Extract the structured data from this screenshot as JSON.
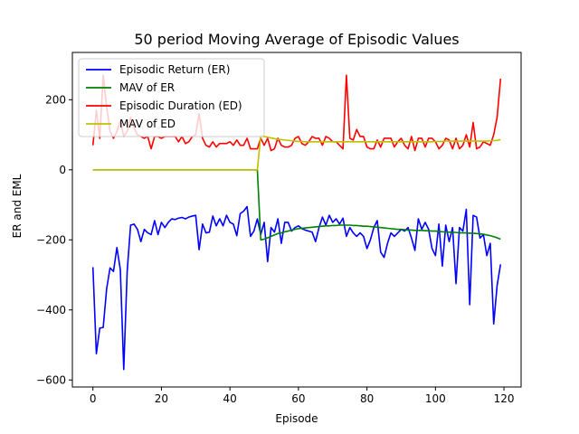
{
  "chart_data": {
    "type": "line",
    "title": "50 period Moving Average of Episodic Values",
    "xlabel": "Episode",
    "ylabel": "ER and EML",
    "xlim": [
      -6,
      125
    ],
    "ylim": [
      -620,
      335
    ],
    "xticks": [
      0,
      20,
      40,
      60,
      80,
      100,
      120
    ],
    "yticks": [
      -600,
      -400,
      -200,
      0,
      200
    ],
    "grid": false,
    "legend_position": "top-left",
    "series": [
      {
        "name": "Episodic Return (ER)",
        "color": "#0000ff",
        "values": [
          -278,
          -525,
          -452,
          -450,
          -340,
          -280,
          -290,
          -222,
          -285,
          -570,
          -290,
          -158,
          -155,
          -170,
          -205,
          -170,
          -180,
          -185,
          -145,
          -185,
          -150,
          -165,
          -150,
          -140,
          -142,
          -138,
          -136,
          -140,
          -135,
          -132,
          -130,
          -228,
          -155,
          -180,
          -178,
          -132,
          -160,
          -140,
          -160,
          -130,
          -150,
          -155,
          -188,
          -125,
          -118,
          -105,
          -190,
          -175,
          -140,
          -185,
          -150,
          -262,
          -165,
          -178,
          -140,
          -210,
          -150,
          -150,
          -175,
          -165,
          -160,
          -168,
          -172,
          -175,
          -178,
          -205,
          -165,
          -135,
          -158,
          -130,
          -150,
          -140,
          -155,
          -138,
          -190,
          -165,
          -180,
          -190,
          -180,
          -190,
          -225,
          -200,
          -165,
          -145,
          -235,
          -250,
          -210,
          -180,
          -190,
          -180,
          -170,
          -175,
          -165,
          -195,
          -230,
          -140,
          -170,
          -150,
          -170,
          -225,
          -245,
          -155,
          -275,
          -158,
          -205,
          -165,
          -325,
          -165,
          -175,
          -113,
          -385,
          -130,
          -135,
          -195,
          -185,
          -245,
          -210,
          -440,
          -330,
          -270
        ]
      },
      {
        "name": "MAV of ER",
        "color": "#008000",
        "values": [
          0,
          0,
          0,
          0,
          0,
          0,
          0,
          0,
          0,
          0,
          0,
          0,
          0,
          0,
          0,
          0,
          0,
          0,
          0,
          0,
          0,
          0,
          0,
          0,
          0,
          0,
          0,
          0,
          0,
          0,
          0,
          0,
          0,
          0,
          0,
          0,
          0,
          0,
          0,
          0,
          0,
          0,
          0,
          0,
          0,
          0,
          0,
          0,
          0,
          -200,
          -198,
          -194,
          -190,
          -186,
          -182,
          -180,
          -177,
          -175,
          -172,
          -170,
          -168,
          -167,
          -166,
          -165,
          -164,
          -163,
          -162,
          -161,
          -160,
          -160,
          -159,
          -159,
          -158,
          -158,
          -158,
          -158,
          -159,
          -159,
          -160,
          -161,
          -161,
          -162,
          -163,
          -164,
          -165,
          -166,
          -167,
          -168,
          -169,
          -170,
          -170,
          -171,
          -172,
          -172,
          -173,
          -173,
          -173,
          -174,
          -174,
          -175,
          -175,
          -176,
          -177,
          -177,
          -178,
          -178,
          -179,
          -180,
          -180,
          -180,
          -181,
          -181,
          -182,
          -183,
          -184,
          -186,
          -188,
          -191,
          -194,
          -198
        ]
      },
      {
        "name": "Episodic Duration (ED)",
        "color": "#ff0000",
        "values": [
          70,
          170,
          90,
          270,
          180,
          110,
          90,
          110,
          140,
          95,
          110,
          150,
          120,
          100,
          95,
          90,
          95,
          60,
          95,
          95,
          90,
          95,
          95,
          95,
          95,
          80,
          95,
          75,
          80,
          95,
          100,
          160,
          90,
          70,
          65,
          80,
          65,
          75,
          75,
          75,
          80,
          70,
          85,
          70,
          70,
          90,
          60,
          60,
          60,
          90,
          70,
          90,
          55,
          60,
          90,
          70,
          65,
          65,
          70,
          90,
          95,
          75,
          70,
          80,
          95,
          90,
          90,
          70,
          95,
          90,
          80,
          80,
          70,
          60,
          270,
          90,
          85,
          115,
          95,
          95,
          65,
          60,
          60,
          85,
          65,
          90,
          90,
          90,
          65,
          80,
          90,
          70,
          60,
          95,
          55,
          90,
          90,
          65,
          90,
          90,
          80,
          60,
          70,
          90,
          85,
          60,
          90,
          60,
          70,
          100,
          65,
          135,
          60,
          65,
          80,
          75,
          70,
          100,
          150,
          260
        ]
      },
      {
        "name": "MAV of ED",
        "color": "#bfbf00",
        "values": [
          0,
          0,
          0,
          0,
          0,
          0,
          0,
          0,
          0,
          0,
          0,
          0,
          0,
          0,
          0,
          0,
          0,
          0,
          0,
          0,
          0,
          0,
          0,
          0,
          0,
          0,
          0,
          0,
          0,
          0,
          0,
          0,
          0,
          0,
          0,
          0,
          0,
          0,
          0,
          0,
          0,
          0,
          0,
          0,
          0,
          0,
          0,
          0,
          0,
          97,
          95,
          93,
          91,
          89,
          87,
          86,
          85,
          84,
          83,
          82,
          81,
          81,
          80,
          80,
          80,
          80,
          80,
          80,
          80,
          80,
          80,
          80,
          80,
          80,
          80,
          80,
          80,
          80,
          80,
          80,
          80,
          80,
          80,
          80,
          80,
          80,
          80,
          80,
          80,
          80,
          80,
          80,
          80,
          80,
          80,
          80,
          80,
          80,
          80,
          80,
          81,
          81,
          81,
          82,
          82,
          82,
          82,
          82,
          82,
          82,
          82,
          82,
          82,
          82,
          82,
          82,
          83,
          83,
          84,
          86
        ]
      }
    ]
  }
}
